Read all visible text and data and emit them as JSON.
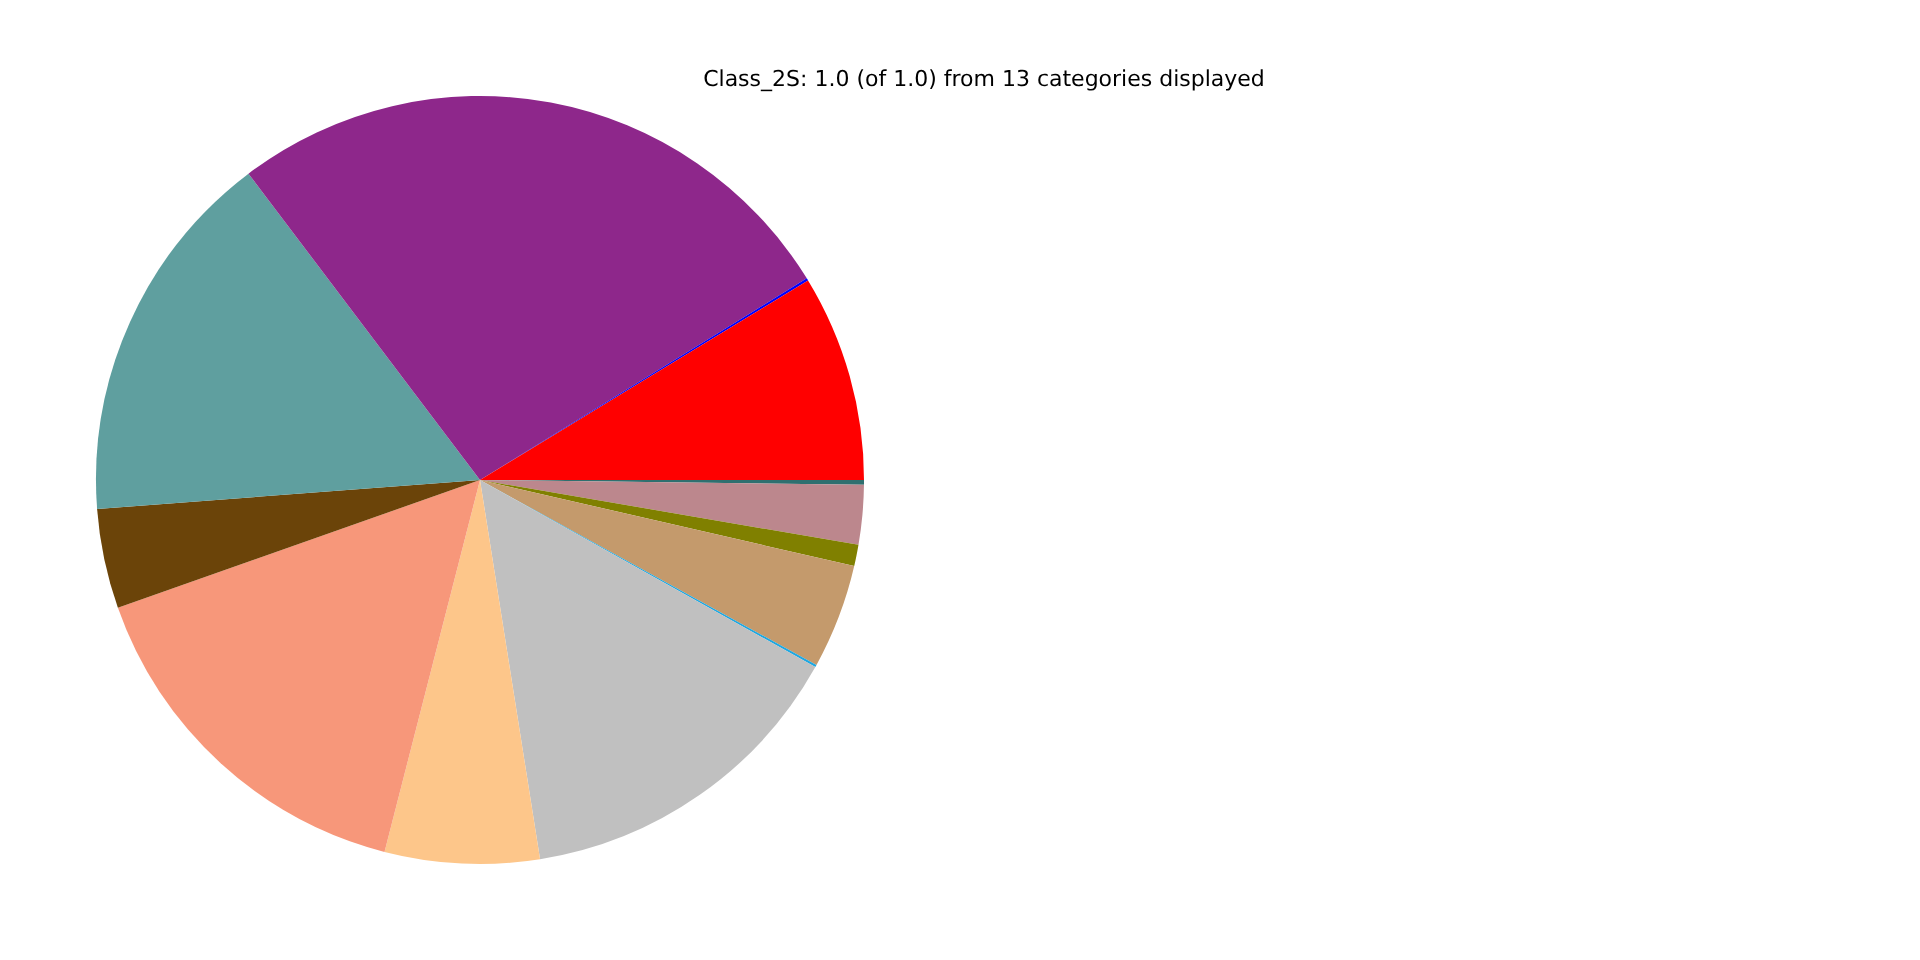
{
  "chart_data": {
    "type": "pie",
    "title": "Class_2S: 1.0 (of 1.0) from 13 categories displayed",
    "categories": [
      null,
      null,
      null,
      null,
      null,
      null,
      null,
      null,
      null,
      null,
      null,
      null,
      null
    ],
    "values": [
      0.2,
      2.5,
      0.9,
      4.4,
      0.1,
      14.4,
      6.5,
      15.6,
      4.2,
      15.9,
      26.5,
      0.1,
      8.7
    ],
    "colors": [
      "#2f6f6f",
      "#bc878d",
      "#808000",
      "#c49a6c",
      "#1ea7e1",
      "#c0c0c0",
      "#fdc68a",
      "#f7977a",
      "#6b4409",
      "#5f9f9f",
      "#8e278b",
      "#0000ff",
      "#ff0000"
    ],
    "legend": false
  }
}
